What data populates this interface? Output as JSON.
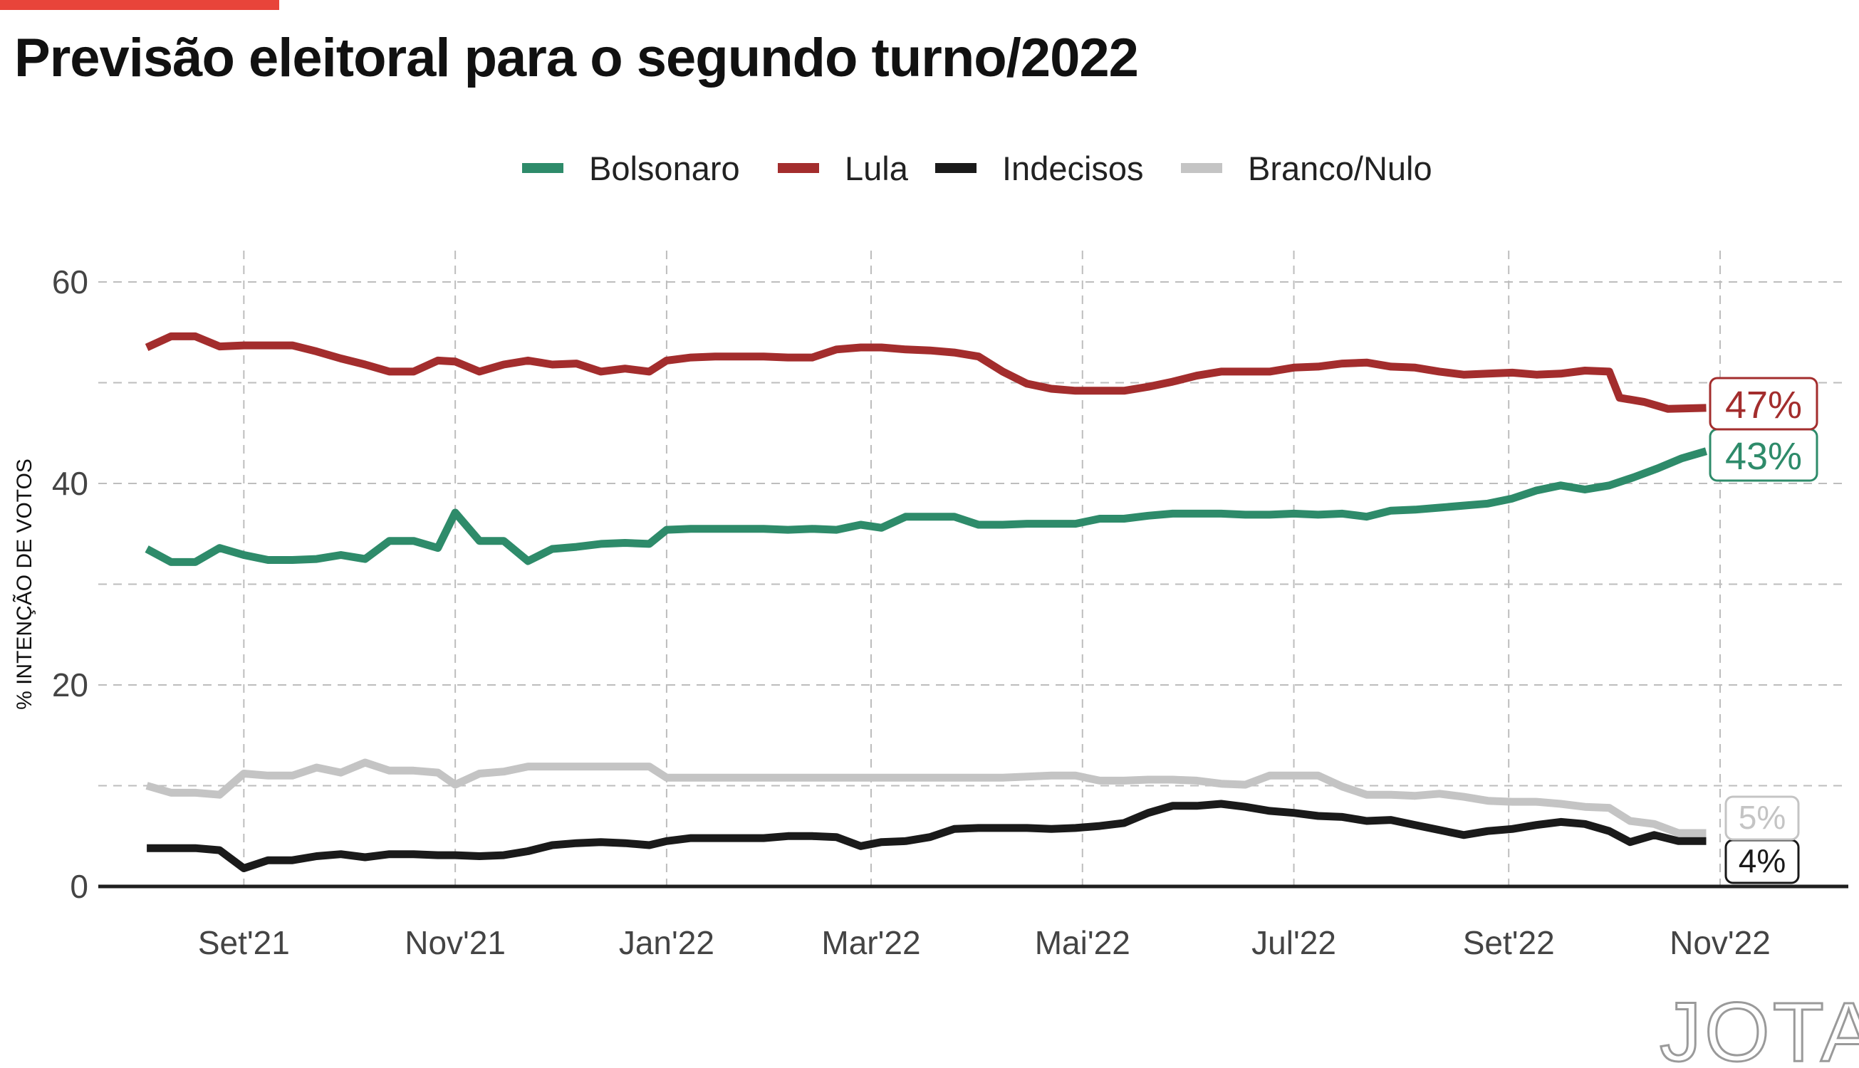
{
  "header": {
    "title": "Previsão eleitoral para o segundo turno/2022",
    "accent_color": "#e8443a"
  },
  "brand": {
    "logo_text": "JOTA"
  },
  "chart_data": {
    "type": "line",
    "title": "Previsão eleitoral para o segundo turno/2022",
    "xlabel": "",
    "ylabel": "% INTENÇÃO DE VOTOS",
    "ylim": [
      0,
      60
    ],
    "yticks": [
      0,
      20,
      40,
      60
    ],
    "xlim": [
      "2021-07-21",
      "2022-12-08"
    ],
    "xticks": [
      {
        "date": "2021-09-01",
        "label": "Set'21"
      },
      {
        "date": "2021-11-01",
        "label": "Nov'21"
      },
      {
        "date": "2022-01-01",
        "label": "Jan'22"
      },
      {
        "date": "2022-03-01",
        "label": "Mar'22"
      },
      {
        "date": "2022-05-01",
        "label": "Mai'22"
      },
      {
        "date": "2022-07-01",
        "label": "Jul'22"
      },
      {
        "date": "2022-09-01",
        "label": "Set'22"
      },
      {
        "date": "2022-11-01",
        "label": "Nov'22"
      }
    ],
    "grid": true,
    "legend_position": "top",
    "series": [
      {
        "name": "Bolsonaro",
        "color": "#2e8b6a",
        "end_label": "43%",
        "points": [
          [
            "2021-08-04",
            33.5
          ],
          [
            "2021-08-11",
            32.2
          ],
          [
            "2021-08-18",
            32.2
          ],
          [
            "2021-08-25",
            33.6
          ],
          [
            "2021-09-01",
            32.9
          ],
          [
            "2021-09-08",
            32.4
          ],
          [
            "2021-09-15",
            32.4
          ],
          [
            "2021-09-22",
            32.5
          ],
          [
            "2021-09-29",
            32.9
          ],
          [
            "2021-10-06",
            32.5
          ],
          [
            "2021-10-13",
            34.3
          ],
          [
            "2021-10-20",
            34.3
          ],
          [
            "2021-10-27",
            33.6
          ],
          [
            "2021-11-01",
            37.1
          ],
          [
            "2021-11-08",
            34.3
          ],
          [
            "2021-11-15",
            34.3
          ],
          [
            "2021-11-22",
            32.3
          ],
          [
            "2021-11-29",
            33.5
          ],
          [
            "2021-12-06",
            33.7
          ],
          [
            "2021-12-13",
            34.0
          ],
          [
            "2021-12-20",
            34.1
          ],
          [
            "2021-12-27",
            34.0
          ],
          [
            "2022-01-01",
            35.4
          ],
          [
            "2022-01-08",
            35.5
          ],
          [
            "2022-01-15",
            35.5
          ],
          [
            "2022-01-22",
            35.5
          ],
          [
            "2022-01-29",
            35.5
          ],
          [
            "2022-02-05",
            35.4
          ],
          [
            "2022-02-12",
            35.5
          ],
          [
            "2022-02-19",
            35.4
          ],
          [
            "2022-02-26",
            35.9
          ],
          [
            "2022-03-04",
            35.6
          ],
          [
            "2022-03-11",
            36.7
          ],
          [
            "2022-03-18",
            36.7
          ],
          [
            "2022-03-25",
            36.7
          ],
          [
            "2022-04-01",
            35.9
          ],
          [
            "2022-04-08",
            35.9
          ],
          [
            "2022-04-15",
            36.0
          ],
          [
            "2022-04-22",
            36.0
          ],
          [
            "2022-04-29",
            36.0
          ],
          [
            "2022-05-06",
            36.5
          ],
          [
            "2022-05-13",
            36.5
          ],
          [
            "2022-05-20",
            36.8
          ],
          [
            "2022-05-27",
            37.0
          ],
          [
            "2022-06-03",
            37.0
          ],
          [
            "2022-06-10",
            37.0
          ],
          [
            "2022-06-17",
            36.9
          ],
          [
            "2022-06-24",
            36.9
          ],
          [
            "2022-07-01",
            37.0
          ],
          [
            "2022-07-08",
            36.9
          ],
          [
            "2022-07-15",
            37.0
          ],
          [
            "2022-07-22",
            36.7
          ],
          [
            "2022-07-29",
            37.3
          ],
          [
            "2022-08-05",
            37.4
          ],
          [
            "2022-08-12",
            37.6
          ],
          [
            "2022-08-19",
            37.8
          ],
          [
            "2022-08-26",
            38.0
          ],
          [
            "2022-09-02",
            38.5
          ],
          [
            "2022-09-09",
            39.3
          ],
          [
            "2022-09-16",
            39.8
          ],
          [
            "2022-09-23",
            39.4
          ],
          [
            "2022-09-30",
            39.8
          ],
          [
            "2022-10-07",
            40.6
          ],
          [
            "2022-10-14",
            41.5
          ],
          [
            "2022-10-21",
            42.5
          ],
          [
            "2022-10-28",
            43.2
          ]
        ]
      },
      {
        "name": "Lula",
        "color": "#a32d2d",
        "end_label": "47%",
        "points": [
          [
            "2021-08-04",
            53.5
          ],
          [
            "2021-08-11",
            54.6
          ],
          [
            "2021-08-18",
            54.6
          ],
          [
            "2021-08-25",
            53.6
          ],
          [
            "2021-09-01",
            53.7
          ],
          [
            "2021-09-08",
            53.7
          ],
          [
            "2021-09-15",
            53.7
          ],
          [
            "2021-09-22",
            53.1
          ],
          [
            "2021-09-29",
            52.4
          ],
          [
            "2021-10-06",
            51.8
          ],
          [
            "2021-10-13",
            51.1
          ],
          [
            "2021-10-20",
            51.1
          ],
          [
            "2021-10-27",
            52.2
          ],
          [
            "2021-11-01",
            52.1
          ],
          [
            "2021-11-08",
            51.1
          ],
          [
            "2021-11-15",
            51.8
          ],
          [
            "2021-11-22",
            52.2
          ],
          [
            "2021-11-29",
            51.8
          ],
          [
            "2021-12-06",
            51.9
          ],
          [
            "2021-12-13",
            51.1
          ],
          [
            "2021-12-20",
            51.4
          ],
          [
            "2021-12-27",
            51.1
          ],
          [
            "2022-01-01",
            52.2
          ],
          [
            "2022-01-08",
            52.5
          ],
          [
            "2022-01-15",
            52.6
          ],
          [
            "2022-01-22",
            52.6
          ],
          [
            "2022-01-29",
            52.6
          ],
          [
            "2022-02-05",
            52.5
          ],
          [
            "2022-02-12",
            52.5
          ],
          [
            "2022-02-19",
            53.3
          ],
          [
            "2022-02-26",
            53.5
          ],
          [
            "2022-03-04",
            53.5
          ],
          [
            "2022-03-11",
            53.3
          ],
          [
            "2022-03-18",
            53.2
          ],
          [
            "2022-03-25",
            53.0
          ],
          [
            "2022-04-01",
            52.6
          ],
          [
            "2022-04-08",
            51.1
          ],
          [
            "2022-04-15",
            49.9
          ],
          [
            "2022-04-22",
            49.4
          ],
          [
            "2022-04-29",
            49.2
          ],
          [
            "2022-05-06",
            49.2
          ],
          [
            "2022-05-13",
            49.2
          ],
          [
            "2022-05-20",
            49.6
          ],
          [
            "2022-05-27",
            50.1
          ],
          [
            "2022-06-03",
            50.7
          ],
          [
            "2022-06-10",
            51.1
          ],
          [
            "2022-06-17",
            51.1
          ],
          [
            "2022-06-24",
            51.1
          ],
          [
            "2022-07-01",
            51.5
          ],
          [
            "2022-07-08",
            51.6
          ],
          [
            "2022-07-15",
            51.9
          ],
          [
            "2022-07-22",
            52.0
          ],
          [
            "2022-07-29",
            51.6
          ],
          [
            "2022-08-05",
            51.5
          ],
          [
            "2022-08-12",
            51.1
          ],
          [
            "2022-08-19",
            50.8
          ],
          [
            "2022-08-26",
            50.9
          ],
          [
            "2022-09-02",
            51.0
          ],
          [
            "2022-09-09",
            50.8
          ],
          [
            "2022-09-16",
            50.9
          ],
          [
            "2022-09-23",
            51.2
          ],
          [
            "2022-09-30",
            51.1
          ],
          [
            "2022-10-03",
            48.5
          ],
          [
            "2022-10-10",
            48.1
          ],
          [
            "2022-10-17",
            47.4
          ],
          [
            "2022-10-28",
            47.5
          ]
        ]
      },
      {
        "name": "Indecisos",
        "color": "#1a1a1a",
        "end_label": "4%",
        "points": [
          [
            "2021-08-04",
            3.8
          ],
          [
            "2021-08-11",
            3.8
          ],
          [
            "2021-08-18",
            3.8
          ],
          [
            "2021-08-25",
            3.6
          ],
          [
            "2021-09-01",
            1.8
          ],
          [
            "2021-09-08",
            2.6
          ],
          [
            "2021-09-15",
            2.6
          ],
          [
            "2021-09-22",
            3.0
          ],
          [
            "2021-09-29",
            3.2
          ],
          [
            "2021-10-06",
            2.9
          ],
          [
            "2021-10-13",
            3.2
          ],
          [
            "2021-10-20",
            3.2
          ],
          [
            "2021-10-27",
            3.1
          ],
          [
            "2021-11-01",
            3.1
          ],
          [
            "2021-11-08",
            3.0
          ],
          [
            "2021-11-15",
            3.1
          ],
          [
            "2021-11-22",
            3.5
          ],
          [
            "2021-11-29",
            4.1
          ],
          [
            "2021-12-06",
            4.3
          ],
          [
            "2021-12-13",
            4.4
          ],
          [
            "2021-12-20",
            4.3
          ],
          [
            "2021-12-27",
            4.1
          ],
          [
            "2022-01-01",
            4.5
          ],
          [
            "2022-01-08",
            4.8
          ],
          [
            "2022-01-15",
            4.8
          ],
          [
            "2022-01-22",
            4.8
          ],
          [
            "2022-01-29",
            4.8
          ],
          [
            "2022-02-05",
            5.0
          ],
          [
            "2022-02-12",
            5.0
          ],
          [
            "2022-02-19",
            4.9
          ],
          [
            "2022-02-26",
            4.0
          ],
          [
            "2022-03-04",
            4.4
          ],
          [
            "2022-03-11",
            4.5
          ],
          [
            "2022-03-18",
            4.9
          ],
          [
            "2022-03-25",
            5.7
          ],
          [
            "2022-04-01",
            5.8
          ],
          [
            "2022-04-08",
            5.8
          ],
          [
            "2022-04-15",
            5.8
          ],
          [
            "2022-04-22",
            5.7
          ],
          [
            "2022-04-29",
            5.8
          ],
          [
            "2022-05-06",
            6.0
          ],
          [
            "2022-05-13",
            6.3
          ],
          [
            "2022-05-20",
            7.3
          ],
          [
            "2022-05-27",
            8.0
          ],
          [
            "2022-06-03",
            8.0
          ],
          [
            "2022-06-10",
            8.2
          ],
          [
            "2022-06-17",
            7.9
          ],
          [
            "2022-06-24",
            7.5
          ],
          [
            "2022-07-01",
            7.3
          ],
          [
            "2022-07-08",
            7.0
          ],
          [
            "2022-07-15",
            6.9
          ],
          [
            "2022-07-22",
            6.5
          ],
          [
            "2022-07-29",
            6.6
          ],
          [
            "2022-08-05",
            6.1
          ],
          [
            "2022-08-12",
            5.6
          ],
          [
            "2022-08-19",
            5.1
          ],
          [
            "2022-08-26",
            5.5
          ],
          [
            "2022-09-02",
            5.7
          ],
          [
            "2022-09-09",
            6.1
          ],
          [
            "2022-09-16",
            6.4
          ],
          [
            "2022-09-23",
            6.2
          ],
          [
            "2022-09-30",
            5.5
          ],
          [
            "2022-10-06",
            4.4
          ],
          [
            "2022-10-13",
            5.1
          ],
          [
            "2022-10-20",
            4.5
          ],
          [
            "2022-10-28",
            4.5
          ]
        ]
      },
      {
        "name": "Branco/Nulo",
        "color": "#c4c4c4",
        "end_label": "5%",
        "points": [
          [
            "2021-08-04",
            10.0
          ],
          [
            "2021-08-11",
            9.3
          ],
          [
            "2021-08-18",
            9.3
          ],
          [
            "2021-08-25",
            9.1
          ],
          [
            "2021-09-01",
            11.2
          ],
          [
            "2021-09-08",
            11.0
          ],
          [
            "2021-09-15",
            11.0
          ],
          [
            "2021-09-22",
            11.8
          ],
          [
            "2021-09-29",
            11.3
          ],
          [
            "2021-10-06",
            12.3
          ],
          [
            "2021-10-13",
            11.5
          ],
          [
            "2021-10-20",
            11.5
          ],
          [
            "2021-10-27",
            11.3
          ],
          [
            "2021-11-01",
            10.1
          ],
          [
            "2021-11-08",
            11.2
          ],
          [
            "2021-11-15",
            11.4
          ],
          [
            "2021-11-22",
            11.9
          ],
          [
            "2021-11-29",
            11.9
          ],
          [
            "2021-12-06",
            11.9
          ],
          [
            "2021-12-13",
            11.9
          ],
          [
            "2021-12-20",
            11.9
          ],
          [
            "2021-12-27",
            11.9
          ],
          [
            "2022-01-01",
            10.8
          ],
          [
            "2022-01-08",
            10.8
          ],
          [
            "2022-01-15",
            10.8
          ],
          [
            "2022-01-22",
            10.8
          ],
          [
            "2022-01-29",
            10.8
          ],
          [
            "2022-02-05",
            10.8
          ],
          [
            "2022-02-12",
            10.8
          ],
          [
            "2022-02-19",
            10.8
          ],
          [
            "2022-02-26",
            10.8
          ],
          [
            "2022-03-04",
            10.8
          ],
          [
            "2022-03-11",
            10.8
          ],
          [
            "2022-03-18",
            10.8
          ],
          [
            "2022-03-25",
            10.8
          ],
          [
            "2022-04-01",
            10.8
          ],
          [
            "2022-04-08",
            10.8
          ],
          [
            "2022-04-15",
            10.9
          ],
          [
            "2022-04-22",
            11.0
          ],
          [
            "2022-04-29",
            11.0
          ],
          [
            "2022-05-06",
            10.5
          ],
          [
            "2022-05-13",
            10.5
          ],
          [
            "2022-05-20",
            10.6
          ],
          [
            "2022-05-27",
            10.6
          ],
          [
            "2022-06-03",
            10.5
          ],
          [
            "2022-06-10",
            10.2
          ],
          [
            "2022-06-17",
            10.1
          ],
          [
            "2022-06-24",
            11.0
          ],
          [
            "2022-07-01",
            11.0
          ],
          [
            "2022-07-08",
            11.0
          ],
          [
            "2022-07-15",
            9.9
          ],
          [
            "2022-07-22",
            9.1
          ],
          [
            "2022-07-29",
            9.1
          ],
          [
            "2022-08-05",
            9.0
          ],
          [
            "2022-08-12",
            9.2
          ],
          [
            "2022-08-19",
            8.9
          ],
          [
            "2022-08-26",
            8.5
          ],
          [
            "2022-09-02",
            8.4
          ],
          [
            "2022-09-09",
            8.4
          ],
          [
            "2022-09-16",
            8.2
          ],
          [
            "2022-09-23",
            7.9
          ],
          [
            "2022-09-30",
            7.8
          ],
          [
            "2022-10-06",
            6.5
          ],
          [
            "2022-10-13",
            6.2
          ],
          [
            "2022-10-20",
            5.3
          ],
          [
            "2022-10-28",
            5.3
          ]
        ]
      }
    ]
  }
}
